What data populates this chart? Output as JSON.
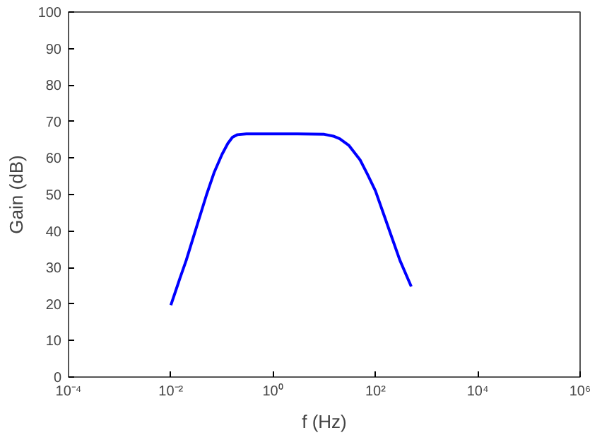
{
  "chart_data": {
    "type": "line",
    "xlabel": "f (Hz)",
    "ylabel": "Gain (dB)",
    "log": "x",
    "x": [
      0.01,
      0.015,
      0.02,
      0.03,
      0.05,
      0.07,
      0.1,
      0.13,
      0.16,
      0.2,
      0.3,
      1,
      3,
      10,
      15,
      20,
      30,
      50,
      70,
      100,
      150,
      200,
      300,
      500
    ],
    "series": [
      {
        "color": "#0000ff",
        "values": [
          19.7,
          27,
          32,
          40,
          50,
          56,
          61,
          64,
          65.7,
          66.4,
          66.6,
          66.6,
          66.6,
          66.5,
          66,
          65.3,
          63.5,
          59.5,
          55.5,
          51,
          44,
          39,
          32,
          24.8
        ]
      }
    ],
    "xlim": [
      0.0001,
      1000000
    ],
    "ylim": [
      0,
      100
    ],
    "xticks": [
      {
        "value": 0.0001,
        "label": "10⁻⁴"
      },
      {
        "value": 0.01,
        "label": "10⁻²"
      },
      {
        "value": 1,
        "label": "10⁰"
      },
      {
        "value": 100,
        "label": "10²"
      },
      {
        "value": 10000,
        "label": "10⁴"
      },
      {
        "value": 1000000,
        "label": "10⁶"
      }
    ],
    "yticks": [
      0,
      10,
      20,
      30,
      40,
      50,
      60,
      70,
      80,
      90,
      100
    ],
    "marker": "none",
    "line_style": "solid"
  }
}
